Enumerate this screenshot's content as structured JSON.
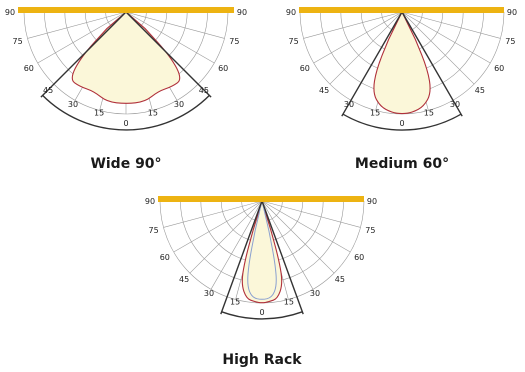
{
  "colors": {
    "fixture_bar": "#EDB312",
    "beam_fill": "#FBF7D9",
    "beam_outline_red": "#B0303A",
    "beam_outline_blue": "#8AA0D0",
    "grid": "#9A9A9A",
    "cutoff_line": "#333333"
  },
  "diagrams": [
    {
      "caption": "Wide 90°",
      "angle_labels": {
        "deg0": "0",
        "deg15": "15",
        "deg30": "30",
        "deg45": "45",
        "deg60": "60",
        "deg75": "75",
        "deg90": "90"
      },
      "beam_angle_deg": 90
    },
    {
      "caption": "Medium 60°",
      "angle_labels": {
        "deg0": "0",
        "deg15": "15",
        "deg30": "30",
        "deg45": "45",
        "deg60": "60",
        "deg75": "75",
        "deg90": "90"
      },
      "beam_angle_deg": 60
    },
    {
      "caption": "High Rack",
      "angle_labels": {
        "deg0": "0",
        "deg15": "15",
        "deg30": "30",
        "deg45": "45",
        "deg60": "60",
        "deg75": "75",
        "deg90": "90"
      },
      "beam_angle_deg": 40
    }
  ]
}
